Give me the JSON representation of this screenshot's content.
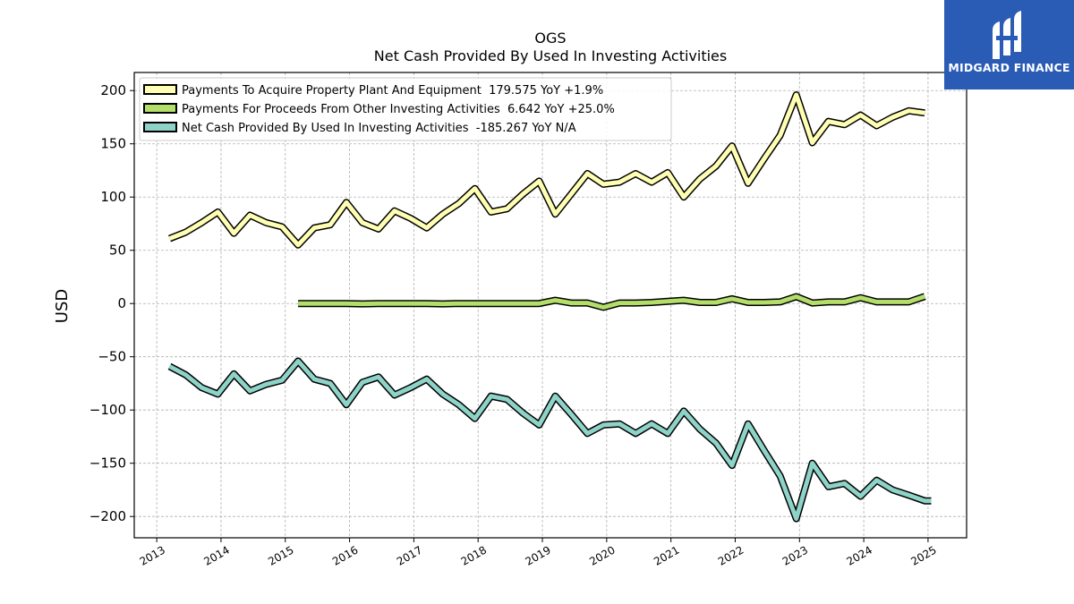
{
  "chart_data": {
    "type": "line",
    "title": "OGS",
    "subtitle": "Net Cash Provided By Used In Investing Activities",
    "ylabel": "USD",
    "xlabel": "",
    "ylim": [
      -220,
      217
    ],
    "xlim": [
      2012.65,
      2025.6
    ],
    "yticks": [
      -200,
      -150,
      -100,
      -50,
      0,
      50,
      100,
      150,
      200
    ],
    "xticks": [
      2013,
      2014,
      2015,
      2016,
      2017,
      2018,
      2019,
      2020,
      2021,
      2022,
      2023,
      2024,
      2025
    ],
    "grid": true,
    "legend_position": "top-left",
    "series": [
      {
        "name": "Payments To Acquire Property Plant And Equipment  179.575 YoY +1.9%",
        "color": "#ffffb3",
        "x": [
          2013.2,
          2013.45,
          2013.7,
          2013.95,
          2014.2,
          2014.45,
          2014.7,
          2014.95,
          2015.2,
          2015.45,
          2015.7,
          2015.95,
          2016.2,
          2016.45,
          2016.7,
          2016.95,
          2017.2,
          2017.45,
          2017.7,
          2017.95,
          2018.2,
          2018.45,
          2018.7,
          2018.95,
          2019.2,
          2019.45,
          2019.7,
          2019.95,
          2020.2,
          2020.45,
          2020.7,
          2020.95,
          2021.2,
          2021.45,
          2021.7,
          2021.95,
          2022.2,
          2022.45,
          2022.7,
          2022.95,
          2023.2,
          2023.45,
          2023.7,
          2023.95,
          2024.2,
          2024.45,
          2024.7,
          2024.95
        ],
        "values": [
          61,
          67,
          76,
          86,
          66,
          83,
          76,
          72,
          55,
          71,
          74,
          95,
          76,
          70,
          87,
          80,
          71,
          84,
          94,
          108,
          86,
          89,
          103,
          115,
          84,
          103,
          122,
          112,
          114,
          122,
          114,
          123,
          100,
          117,
          129,
          148,
          113,
          136,
          158,
          196,
          151,
          171,
          168,
          177,
          167,
          175,
          181,
          179
        ]
      },
      {
        "name": "Payments For Proceeds From Other Investing Activities  6.642 YoY +25.0%",
        "color": "#b3de69",
        "x": [
          2015.2,
          2015.45,
          2015.7,
          2015.95,
          2016.2,
          2016.45,
          2016.7,
          2016.95,
          2017.2,
          2017.45,
          2017.7,
          2017.95,
          2018.2,
          2018.45,
          2018.7,
          2018.95,
          2019.2,
          2019.45,
          2019.7,
          2019.95,
          2020.2,
          2020.45,
          2020.7,
          2020.95,
          2021.2,
          2021.45,
          2021.7,
          2021.95,
          2022.2,
          2022.45,
          2022.7,
          2022.95,
          2023.2,
          2023.45,
          2023.7,
          2023.95,
          2024.2,
          2024.45,
          2024.7,
          2024.95
        ],
        "values": [
          0,
          0,
          0,
          0,
          -0.3,
          0,
          0,
          0,
          0,
          -0.3,
          0,
          0,
          0,
          0,
          0,
          0,
          3,
          0.5,
          0.5,
          -3.5,
          0.5,
          0.5,
          1,
          2,
          3,
          1,
          1,
          4.5,
          1,
          1,
          1.5,
          6.5,
          0.5,
          1.5,
          1.5,
          5.5,
          1.5,
          1.5,
          1.5,
          6.642
        ]
      },
      {
        "name": "Net Cash Provided By Used In Investing Activities  -185.267 YoY N/A",
        "color": "#8dd3c7",
        "x": [
          2013.2,
          2013.45,
          2013.7,
          2013.95,
          2014.2,
          2014.45,
          2014.7,
          2014.95,
          2015.2,
          2015.45,
          2015.7,
          2015.95,
          2016.2,
          2016.45,
          2016.7,
          2016.95,
          2017.2,
          2017.45,
          2017.7,
          2017.95,
          2018.2,
          2018.45,
          2018.7,
          2018.95,
          2019.2,
          2019.45,
          2019.7,
          2019.95,
          2020.2,
          2020.45,
          2020.7,
          2020.95,
          2021.2,
          2021.45,
          2021.7,
          2021.95,
          2022.2,
          2022.45,
          2022.7,
          2022.95,
          2023.2,
          2023.45,
          2023.7,
          2023.95,
          2024.2,
          2024.45,
          2024.7,
          2024.95,
          2025.05
        ],
        "values": [
          -59,
          -67,
          -79,
          -85,
          -66,
          -82,
          -76,
          -72,
          -54,
          -71,
          -75,
          -95,
          -74,
          -69,
          -86,
          -79,
          -71,
          -85,
          -95,
          -108,
          -87,
          -90,
          -103,
          -114,
          -87,
          -104,
          -122,
          -114,
          -113,
          -122,
          -113,
          -122,
          -101,
          -118,
          -131,
          -152,
          -113,
          -138,
          -162,
          -202,
          -150,
          -172,
          -169,
          -181,
          -166,
          -175,
          -180,
          -185.267,
          -185.267
        ]
      }
    ]
  },
  "logo": {
    "text": "MIDGARD FINANCE"
  }
}
